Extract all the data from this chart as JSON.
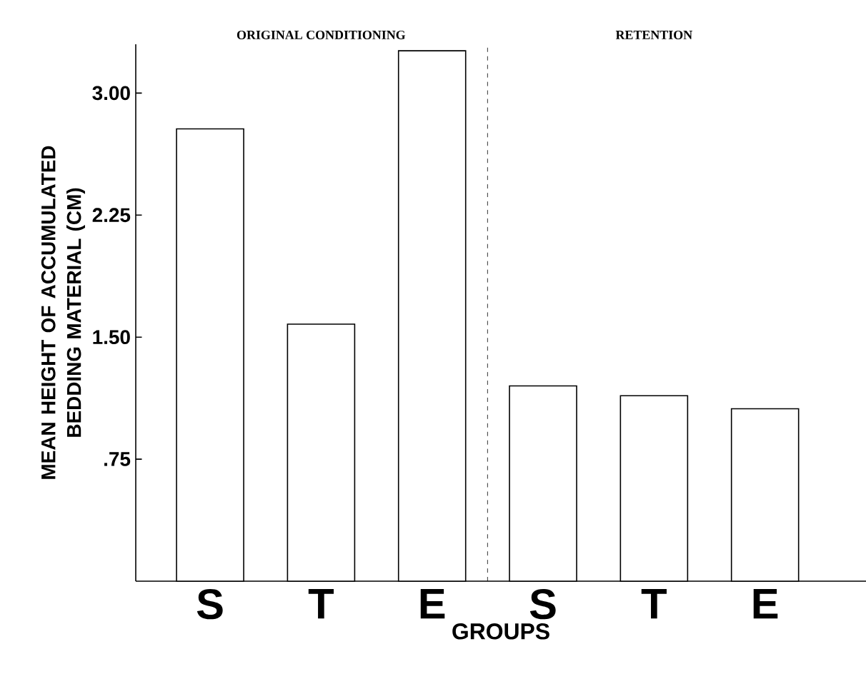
{
  "chart_data": {
    "type": "bar",
    "xlabel": "GROUPS",
    "ylabel": "MEAN HEIGHT OF ACCUMULATED BEDDING MATERIAL (CM)",
    "categories": [
      "S",
      "T",
      "E",
      "S",
      "T",
      "E"
    ],
    "values": [
      2.78,
      1.58,
      3.26,
      1.2,
      1.14,
      1.06
    ],
    "color": "#ffffff",
    "ylim": [
      0,
      3.3
    ],
    "yticks": [
      {
        "value": 0.75,
        "label": ".75"
      },
      {
        "value": 1.5,
        "label": "1.50"
      },
      2.25,
      {
        "value": 3,
        "label": "3.00"
      }
    ],
    "annotations": [
      "ORIGINAL CONDITIONING",
      "RETENTION"
    ],
    "grid": false
  }
}
